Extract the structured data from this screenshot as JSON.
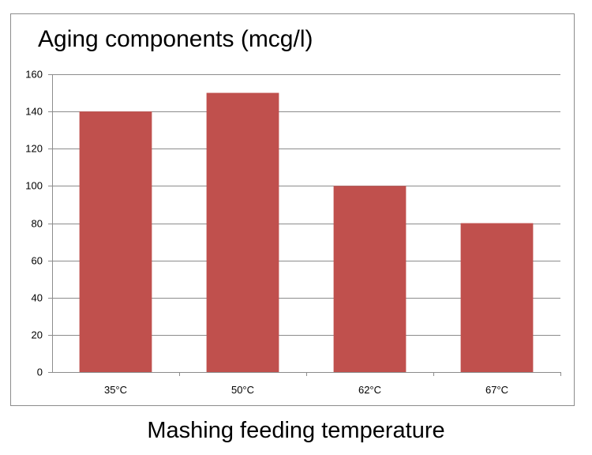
{
  "chart_data": {
    "type": "bar",
    "title": "Aging components (mcg/l)",
    "xlabel": "Mashing feeding temperature",
    "ylabel": "",
    "categories": [
      "35°C",
      "50°C",
      "62°C",
      "67°C"
    ],
    "values": [
      140,
      150,
      100,
      80
    ],
    "ylim": [
      0,
      160
    ],
    "yticks": [
      0,
      20,
      40,
      60,
      80,
      100,
      120,
      140,
      160
    ],
    "grid": true,
    "legend": "none",
    "bar_color": "#c0504d"
  }
}
